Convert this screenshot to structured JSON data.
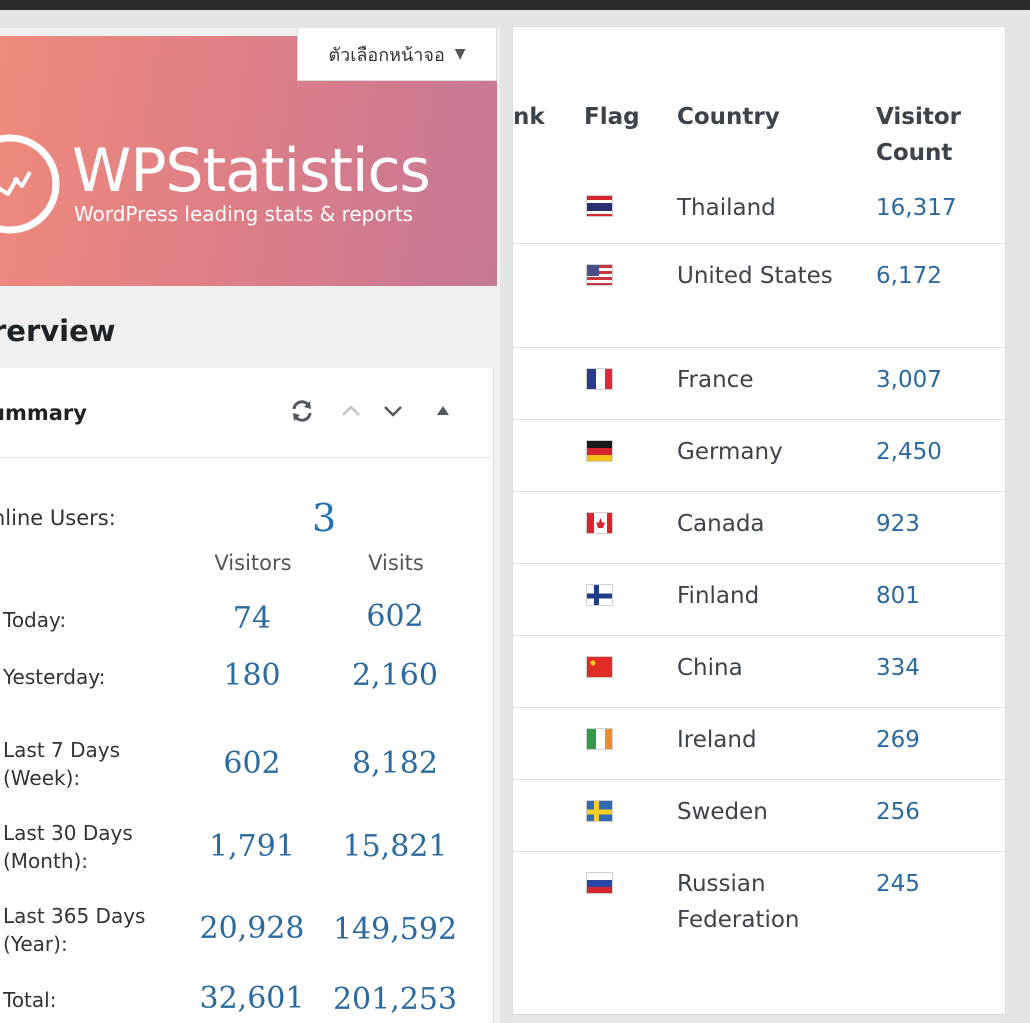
{
  "screen_options": {
    "label": "ตัวเลือกหน้าจอ",
    "caret": "▼"
  },
  "brand": {
    "title": "WPStatistics",
    "subtitle": "WordPress leading stats & reports"
  },
  "page_title": "rerview",
  "summary": {
    "title": "ummary",
    "icons": [
      "refresh-icon",
      "chevron-up-icon",
      "chevron-down-icon",
      "triangle-up-icon"
    ],
    "online_label": "nline Users:",
    "online_value": "3",
    "col_visitors": "Visitors",
    "col_visits": "Visits",
    "rows": [
      {
        "label": "Today:",
        "visitors": "74",
        "visits": "602"
      },
      {
        "label": "Yesterday:",
        "visitors": "180",
        "visits": "2,160"
      },
      {
        "label": "Last 7 Days\n(Week):",
        "visitors": "602",
        "visits": "8,182"
      },
      {
        "label": "Last 30 Days\n(Month):",
        "visitors": "1,791",
        "visits": "15,821"
      },
      {
        "label": "Last 365 Days\n(Year):",
        "visitors": "20,928",
        "visits": "149,592"
      },
      {
        "label": "Total:",
        "visitors": "32,601",
        "visits": "201,253"
      }
    ]
  },
  "countries": {
    "headers": {
      "rank": "nk",
      "flag": "Flag",
      "country": "Country",
      "count": "Visitor Count"
    },
    "rows": [
      {
        "country": "Thailand",
        "count": "16,317",
        "flag": "thailand-flag-icon"
      },
      {
        "country": "United States",
        "count": "6,172",
        "flag": "united-states-flag-icon"
      },
      {
        "country": "France",
        "count": "3,007",
        "flag": "france-flag-icon"
      },
      {
        "country": "Germany",
        "count": "2,450",
        "flag": "germany-flag-icon"
      },
      {
        "country": "Canada",
        "count": "923",
        "flag": "canada-flag-icon"
      },
      {
        "country": "Finland",
        "count": "801",
        "flag": "finland-flag-icon"
      },
      {
        "country": "China",
        "count": "334",
        "flag": "china-flag-icon"
      },
      {
        "country": "Ireland",
        "count": "269",
        "flag": "ireland-flag-icon"
      },
      {
        "country": "Sweden",
        "count": "256",
        "flag": "sweden-flag-icon"
      },
      {
        "country": "Russian Federation",
        "count": "245",
        "flag": "russia-flag-icon"
      }
    ]
  },
  "colors": {
    "link": "#2b6aa0",
    "banner_start": "#ef8a7c",
    "banner_end": "#c57796"
  }
}
